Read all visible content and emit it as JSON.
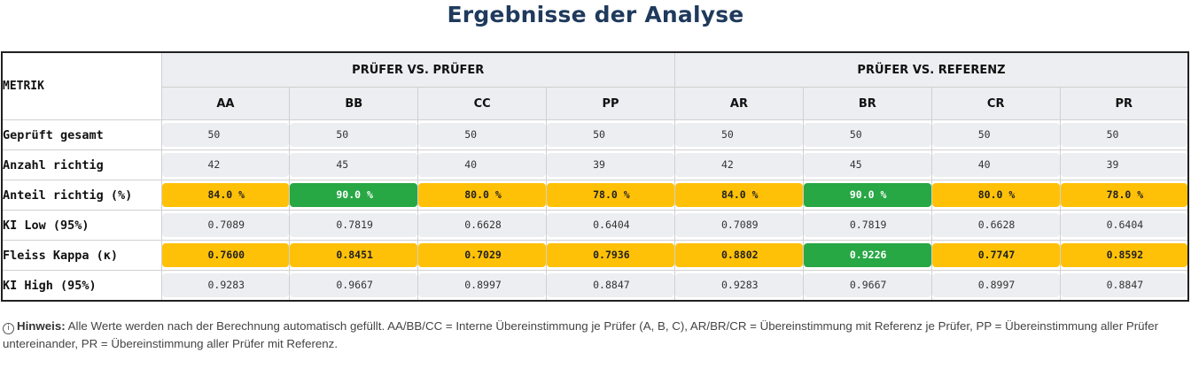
{
  "title": "Ergebnisse der Analyse",
  "table": {
    "corner_label": "METRIK",
    "groups": [
      "PRÜFER VS. PRÜFER",
      "PRÜFER VS. REFERENZ"
    ],
    "columns": [
      "AA",
      "BB",
      "CC",
      "PP",
      "AR",
      "BR",
      "CR",
      "PR"
    ],
    "rows": [
      {
        "label": "Geprüft gesamt",
        "cells": [
          {
            "value": "50",
            "status": "plain"
          },
          {
            "value": "50",
            "status": "plain"
          },
          {
            "value": "50",
            "status": "plain"
          },
          {
            "value": "50",
            "status": "plain"
          },
          {
            "value": "50",
            "status": "plain"
          },
          {
            "value": "50",
            "status": "plain"
          },
          {
            "value": "50",
            "status": "plain"
          },
          {
            "value": "50",
            "status": "plain"
          }
        ]
      },
      {
        "label": "Anzahl richtig",
        "cells": [
          {
            "value": "42",
            "status": "plain"
          },
          {
            "value": "45",
            "status": "plain"
          },
          {
            "value": "40",
            "status": "plain"
          },
          {
            "value": "39",
            "status": "plain"
          },
          {
            "value": "42",
            "status": "plain"
          },
          {
            "value": "45",
            "status": "plain"
          },
          {
            "value": "40",
            "status": "plain"
          },
          {
            "value": "39",
            "status": "plain"
          }
        ]
      },
      {
        "label": "Anteil richtig (%)",
        "cells": [
          {
            "value": "84.0 %",
            "status": "yellow"
          },
          {
            "value": "90.0 %",
            "status": "green"
          },
          {
            "value": "80.0 %",
            "status": "yellow"
          },
          {
            "value": "78.0 %",
            "status": "yellow"
          },
          {
            "value": "84.0 %",
            "status": "yellow"
          },
          {
            "value": "90.0 %",
            "status": "green"
          },
          {
            "value": "80.0 %",
            "status": "yellow"
          },
          {
            "value": "78.0 %",
            "status": "yellow"
          }
        ]
      },
      {
        "label": "KI Low (95%)",
        "cells": [
          {
            "value": "0.7089",
            "status": "plain"
          },
          {
            "value": "0.7819",
            "status": "plain"
          },
          {
            "value": "0.6628",
            "status": "plain"
          },
          {
            "value": "0.6404",
            "status": "plain"
          },
          {
            "value": "0.7089",
            "status": "plain"
          },
          {
            "value": "0.7819",
            "status": "plain"
          },
          {
            "value": "0.6628",
            "status": "plain"
          },
          {
            "value": "0.6404",
            "status": "plain"
          }
        ]
      },
      {
        "label": "Fleiss Kappa (κ)",
        "cells": [
          {
            "value": "0.7600",
            "status": "yellow"
          },
          {
            "value": "0.8451",
            "status": "yellow"
          },
          {
            "value": "0.7029",
            "status": "yellow"
          },
          {
            "value": "0.7936",
            "status": "yellow"
          },
          {
            "value": "0.8802",
            "status": "yellow"
          },
          {
            "value": "0.9226",
            "status": "green"
          },
          {
            "value": "0.7747",
            "status": "yellow"
          },
          {
            "value": "0.8592",
            "status": "yellow"
          }
        ]
      },
      {
        "label": "KI High (95%)",
        "cells": [
          {
            "value": "0.9283",
            "status": "plain"
          },
          {
            "value": "0.9667",
            "status": "plain"
          },
          {
            "value": "0.8997",
            "status": "plain"
          },
          {
            "value": "0.8847",
            "status": "plain"
          },
          {
            "value": "0.9283",
            "status": "plain"
          },
          {
            "value": "0.9667",
            "status": "plain"
          },
          {
            "value": "0.8997",
            "status": "plain"
          },
          {
            "value": "0.8847",
            "status": "plain"
          }
        ]
      }
    ]
  },
  "note": {
    "icon": "info-icon",
    "icon_glyph": "i",
    "label": "Hinweis:",
    "text": "Alle Werte werden nach der Berechnung automatisch gefüllt. AA/BB/CC = Interne Übereinstimmung je Prüfer (A, B, C), AR/BR/CR = Übereinstimmung mit Referenz je Prüfer, PP = Übereinstimmung aller Prüfer untereinander, PR = Übereinstimmung aller Prüfer mit Referenz."
  },
  "colors": {
    "title": "#1f3a5c",
    "yellow": "#ffc107",
    "green": "#28a745",
    "plain": "#eceef1"
  }
}
